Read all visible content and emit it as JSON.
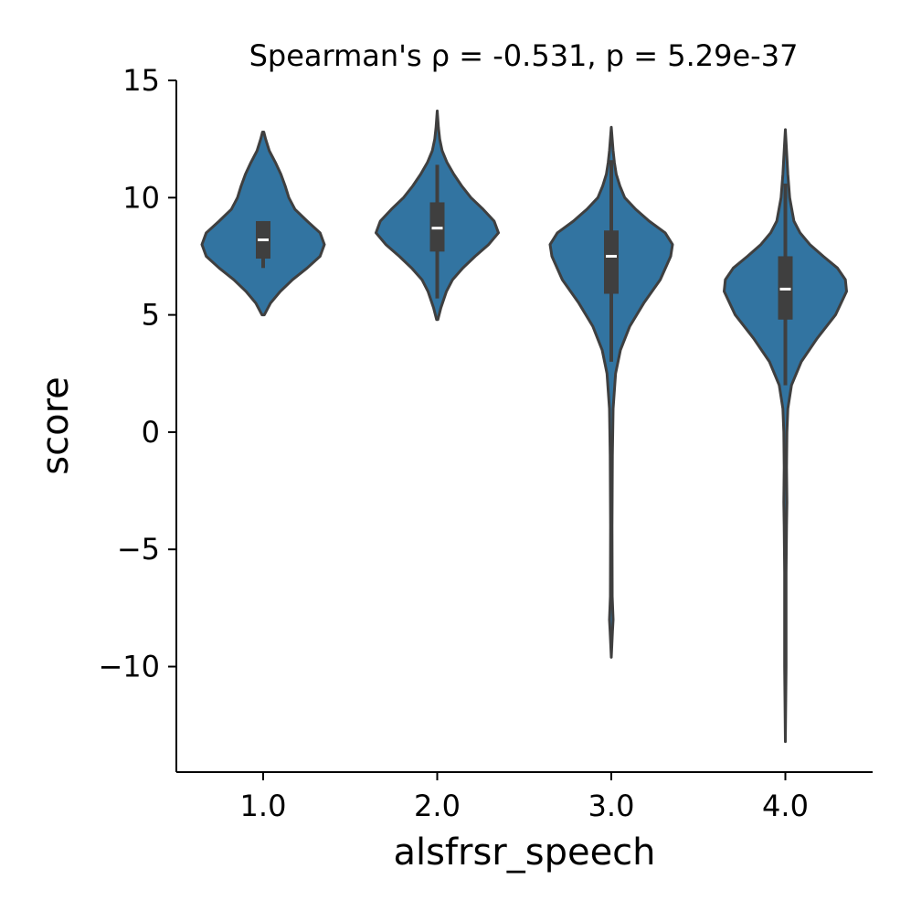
{
  "chart_data": {
    "type": "violin",
    "title": "Spearman's ρ = -0.531, p = 5.29e-37",
    "xlabel": "alsfrsr_speech",
    "ylabel": "score",
    "ylim": [
      -14.5,
      15
    ],
    "yticks": [
      15,
      10,
      5,
      0,
      -5,
      -10
    ],
    "ytick_labels": [
      "15",
      "10",
      "5",
      "0",
      "−5",
      "−10"
    ],
    "categories": [
      "1.0",
      "2.0",
      "3.0",
      "4.0"
    ],
    "grid": false,
    "color": "#3274a1",
    "edge_color": "#3f3f3f",
    "violins": [
      {
        "category": "1.0",
        "min": 5.0,
        "max": 12.8,
        "q1": 7.4,
        "median": 8.2,
        "q3": 9.0,
        "whisker_low": 7.0,
        "whisker_high": 9.0,
        "density": [
          [
            5.0,
            0.02
          ],
          [
            5.5,
            0.12
          ],
          [
            6.0,
            0.28
          ],
          [
            6.5,
            0.48
          ],
          [
            7.0,
            0.72
          ],
          [
            7.5,
            0.93
          ],
          [
            8.0,
            1.0
          ],
          [
            8.5,
            0.93
          ],
          [
            9.0,
            0.72
          ],
          [
            9.5,
            0.52
          ],
          [
            10.0,
            0.42
          ],
          [
            10.5,
            0.36
          ],
          [
            11.0,
            0.29
          ],
          [
            11.5,
            0.2
          ],
          [
            12.0,
            0.1
          ],
          [
            12.5,
            0.04
          ],
          [
            12.8,
            0.01
          ]
        ]
      },
      {
        "category": "2.0",
        "min": 4.8,
        "max": 13.7,
        "q1": 7.7,
        "median": 8.7,
        "q3": 9.8,
        "whisker_low": 5.7,
        "whisker_high": 11.4,
        "density": [
          [
            4.8,
            0.01
          ],
          [
            5.3,
            0.06
          ],
          [
            6.0,
            0.15
          ],
          [
            6.5,
            0.25
          ],
          [
            7.0,
            0.42
          ],
          [
            7.5,
            0.62
          ],
          [
            8.0,
            0.84
          ],
          [
            8.5,
            1.0
          ],
          [
            9.0,
            0.93
          ],
          [
            9.5,
            0.75
          ],
          [
            10.0,
            0.55
          ],
          [
            10.5,
            0.4
          ],
          [
            11.0,
            0.27
          ],
          [
            11.5,
            0.16
          ],
          [
            12.0,
            0.08
          ],
          [
            12.5,
            0.04
          ],
          [
            13.0,
            0.02
          ],
          [
            13.7,
            0.0
          ]
        ]
      },
      {
        "category": "3.0",
        "min": -9.6,
        "max": 13.0,
        "q1": 5.9,
        "median": 7.5,
        "q3": 8.6,
        "whisker_low": 3.0,
        "whisker_high": 11.6,
        "density": [
          [
            -9.6,
            0.0
          ],
          [
            -8.5,
            0.02
          ],
          [
            -8.0,
            0.03
          ],
          [
            -7.0,
            0.015
          ],
          [
            -4.0,
            0.012
          ],
          [
            -1.0,
            0.018
          ],
          [
            1.0,
            0.03
          ],
          [
            2.5,
            0.07
          ],
          [
            3.5,
            0.15
          ],
          [
            4.5,
            0.3
          ],
          [
            5.5,
            0.53
          ],
          [
            6.5,
            0.8
          ],
          [
            7.5,
            0.97
          ],
          [
            8.0,
            1.0
          ],
          [
            8.5,
            0.88
          ],
          [
            9.0,
            0.62
          ],
          [
            9.5,
            0.4
          ],
          [
            10.0,
            0.22
          ],
          [
            10.5,
            0.14
          ],
          [
            11.0,
            0.08
          ],
          [
            11.5,
            0.05
          ],
          [
            12.0,
            0.03
          ],
          [
            12.5,
            0.015
          ],
          [
            13.0,
            0.0
          ]
        ]
      },
      {
        "category": "4.0",
        "min": -13.2,
        "max": 12.9,
        "q1": 4.8,
        "median": 6.1,
        "q3": 7.5,
        "whisker_low": 2.0,
        "whisker_high": 10.6,
        "density": [
          [
            -13.2,
            0.0
          ],
          [
            -10.0,
            0.012
          ],
          [
            -6.0,
            0.012
          ],
          [
            -4.0,
            0.02
          ],
          [
            -3.0,
            0.025
          ],
          [
            -1.5,
            0.02
          ],
          [
            0.0,
            0.025
          ],
          [
            1.0,
            0.04
          ],
          [
            2.0,
            0.1
          ],
          [
            3.0,
            0.26
          ],
          [
            4.0,
            0.52
          ],
          [
            5.0,
            0.82
          ],
          [
            6.0,
            1.0
          ],
          [
            6.5,
            0.98
          ],
          [
            7.0,
            0.85
          ],
          [
            7.5,
            0.62
          ],
          [
            8.0,
            0.4
          ],
          [
            8.5,
            0.24
          ],
          [
            9.0,
            0.14
          ],
          [
            10.0,
            0.07
          ],
          [
            11.0,
            0.04
          ],
          [
            12.0,
            0.02
          ],
          [
            12.9,
            0.0
          ]
        ]
      }
    ]
  }
}
